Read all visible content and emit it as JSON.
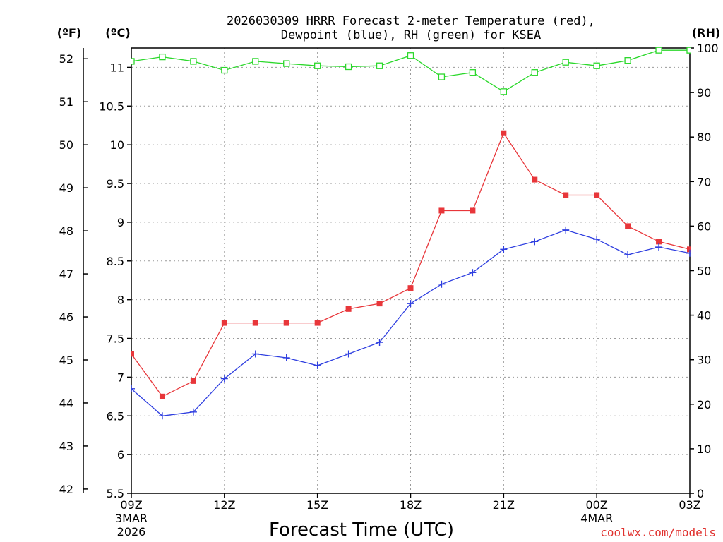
{
  "title_line1": "2026030309 HRRR Forecast 2-meter Temperature (red),",
  "title_line2": "Dewpoint (blue), RH (green) for KSEA",
  "units": {
    "left_outer": "(ºF)",
    "left_inner": "(ºC)",
    "right": "(RH)"
  },
  "credit": "coolwx.com/models",
  "colors": {
    "temperature": "#e8363a",
    "dewpoint": "#2f3fe0",
    "rh": "#2bd82b"
  },
  "chart_data": {
    "type": "line",
    "title": "2026030309 HRRR Forecast 2-meter Temperature (red), Dewpoint (blue), RH (green) for KSEA",
    "xlabel": "Forecast Time (UTC)",
    "x_hours": [
      0,
      1,
      2,
      3,
      4,
      5,
      6,
      7,
      8,
      9,
      10,
      11,
      12,
      13,
      14,
      15,
      16,
      17,
      18
    ],
    "xlim": [
      0,
      18
    ],
    "x_ticks": [
      {
        "hour": 0,
        "label": "09Z",
        "sub": [
          "3MAR",
          "2026"
        ]
      },
      {
        "hour": 3,
        "label": "12Z",
        "sub": []
      },
      {
        "hour": 6,
        "label": "15Z",
        "sub": []
      },
      {
        "hour": 9,
        "label": "18Z",
        "sub": []
      },
      {
        "hour": 12,
        "label": "21Z",
        "sub": []
      },
      {
        "hour": 15,
        "label": "00Z",
        "sub": [
          "4MAR"
        ]
      },
      {
        "hour": 18,
        "label": "03Z",
        "sub": []
      }
    ],
    "y_celsius": {
      "label": "(ºC)",
      "range": [
        5.5,
        11.25
      ],
      "ticks": [
        "5.5",
        "6",
        "6.5",
        "7",
        "7.5",
        "8",
        "8.5",
        "9",
        "9.5",
        "10",
        "10.5",
        "11"
      ]
    },
    "y_fahrenheit": {
      "label": "(ºF)",
      "range": [
        41.9,
        52.25
      ],
      "ticks": [
        "42",
        "43",
        "44",
        "45",
        "46",
        "47",
        "48",
        "49",
        "50",
        "51",
        "52"
      ]
    },
    "y_rh": {
      "label": "(RH)",
      "range": [
        0,
        100
      ],
      "ticks": [
        "0",
        "10",
        "20",
        "30",
        "40",
        "50",
        "60",
        "70",
        "80",
        "90",
        "100"
      ]
    },
    "series": [
      {
        "name": "Temperature",
        "axis": "celsius",
        "marker": "square-filled",
        "values": [
          7.3,
          6.75,
          6.95,
          7.7,
          7.7,
          7.7,
          7.7,
          7.88,
          7.95,
          8.15,
          9.15,
          9.15,
          10.15,
          9.55,
          9.35,
          9.35,
          8.95,
          8.75,
          8.65
        ]
      },
      {
        "name": "Dewpoint",
        "axis": "celsius",
        "marker": "plus",
        "values": [
          6.85,
          6.5,
          6.55,
          6.98,
          7.3,
          7.25,
          7.15,
          7.3,
          7.45,
          7.95,
          8.2,
          8.35,
          8.65,
          8.75,
          8.9,
          8.78,
          8.58,
          8.68,
          8.6
        ]
      },
      {
        "name": "RH",
        "axis": "rh",
        "marker": "square-open",
        "values": [
          97,
          98,
          97,
          95,
          97,
          96.5,
          96,
          95.8,
          96,
          98.3,
          93.5,
          94.5,
          90.2,
          94.5,
          96.8,
          96,
          97.2,
          99.5,
          99.5
        ]
      }
    ]
  }
}
